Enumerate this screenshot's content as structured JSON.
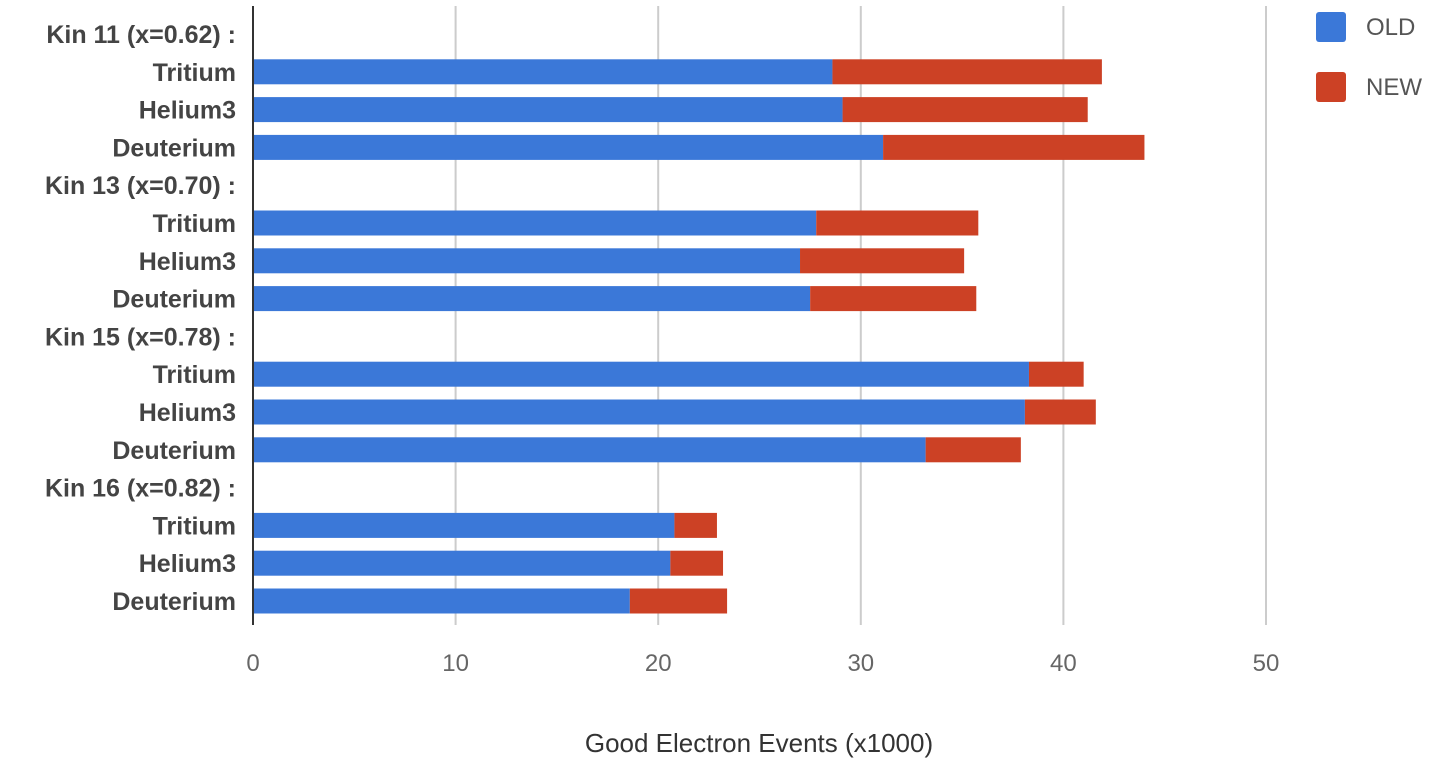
{
  "chart_data": {
    "type": "bar",
    "orientation": "horizontal",
    "stacked": true,
    "categories": [
      "Kin 11 (x=0.62) :",
      "Tritium",
      "Helium3",
      "Deuterium",
      "Kin 13 (x=0.70) :",
      "Tritium",
      "Helium3",
      "Deuterium",
      "Kin 15 (x=0.78) :",
      "Tritium",
      "Helium3",
      "Deuterium",
      "Kin 16 (x=0.82) :",
      "Tritium",
      "Helium3",
      "Deuterium"
    ],
    "series": [
      {
        "name": "OLD",
        "color": "#3b78d8",
        "values": [
          null,
          28.6,
          29.1,
          31.1,
          null,
          27.8,
          27.0,
          27.5,
          null,
          38.3,
          38.1,
          33.2,
          null,
          20.8,
          20.6,
          18.6
        ]
      },
      {
        "name": "NEW",
        "color": "#cc4125",
        "values": [
          null,
          13.3,
          12.1,
          12.9,
          null,
          8.0,
          8.1,
          8.2,
          null,
          2.7,
          3.5,
          4.7,
          null,
          2.1,
          2.6,
          4.8
        ]
      }
    ],
    "xlabel": "Good Electron Events (x1000)",
    "ylabel": "",
    "xlim": [
      0,
      50
    ],
    "xticks": [
      "0",
      "10",
      "20",
      "30",
      "40",
      "50"
    ],
    "grid": true,
    "legend_position": "top-right"
  }
}
